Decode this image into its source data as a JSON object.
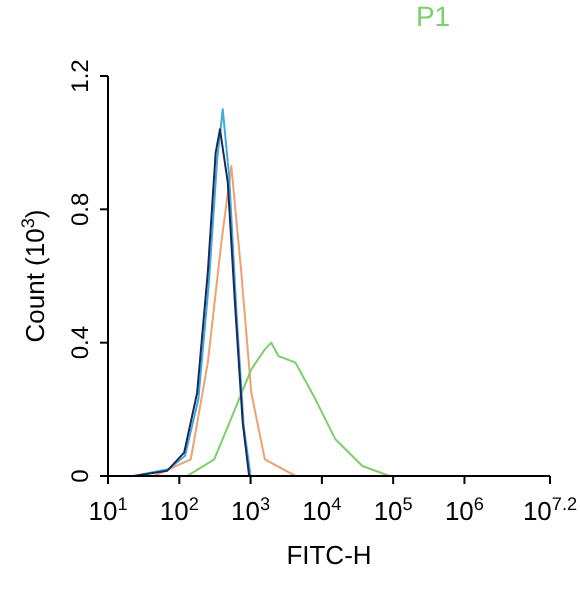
{
  "chart_data": {
    "type": "line",
    "xlabel": "FITC-H",
    "ylabel": "Count (10$^{3}$)",
    "log": "x",
    "marker": "none",
    "legend": "top",
    "xlim": [
      10,
      15848931.9
    ],
    "xticks": [
      {
        "value": 10,
        "label": "10$^{1}$"
      },
      {
        "value": 100,
        "label": "10$^{2}$"
      },
      {
        "value": 1000,
        "label": "10$^{3}$"
      },
      {
        "value": 10000,
        "label": "10$^{4}$"
      },
      {
        "value": 100000,
        "label": "10$^{5}$"
      },
      {
        "value": 1000000,
        "label": "10$^{6}$"
      },
      {
        "value": 15848931.9,
        "label": "10$^{7.2}$"
      }
    ],
    "ylim": [
      0,
      1.2
    ],
    "yticks": [
      0,
      0.4,
      0.8,
      1.2
    ],
    "series": [
      {
        "color": "#f0a070",
        "x": [
          44,
          145,
          251,
          389,
          537,
          741,
          1023,
          1585,
          4266
        ],
        "values": [
          0,
          0.05,
          0.34,
          0.7,
          0.93,
          0.61,
          0.25,
          0.05,
          0
        ]
      },
      {
        "name": "P1",
        "color": "#7ccf6a",
        "x": [
          129,
          309,
          603,
          1023,
          1585,
          1950,
          2455,
          4266,
          8128,
          15500,
          37000,
          89000
        ],
        "values": [
          0,
          0.05,
          0.2,
          0.32,
          0.38,
          0.4,
          0.36,
          0.34,
          0.23,
          0.11,
          0.03,
          0
        ]
      },
      {
        "color": "#3fa9dd",
        "x": [
          23,
          70,
          120,
          185,
          260,
          340,
          407,
          500,
          630,
          800,
          1000
        ],
        "values": [
          0,
          0.02,
          0.06,
          0.23,
          0.58,
          0.95,
          1.1,
          0.9,
          0.5,
          0.15,
          0
        ]
      },
      {
        "color": "#1a2a5a",
        "x": [
          23,
          68,
          117,
          178,
          251,
          324,
          372,
          479,
          603,
          776,
          955
        ],
        "values": [
          0,
          0.016,
          0.07,
          0.25,
          0.61,
          0.97,
          1.04,
          0.88,
          0.52,
          0.16,
          0
        ]
      }
    ]
  }
}
